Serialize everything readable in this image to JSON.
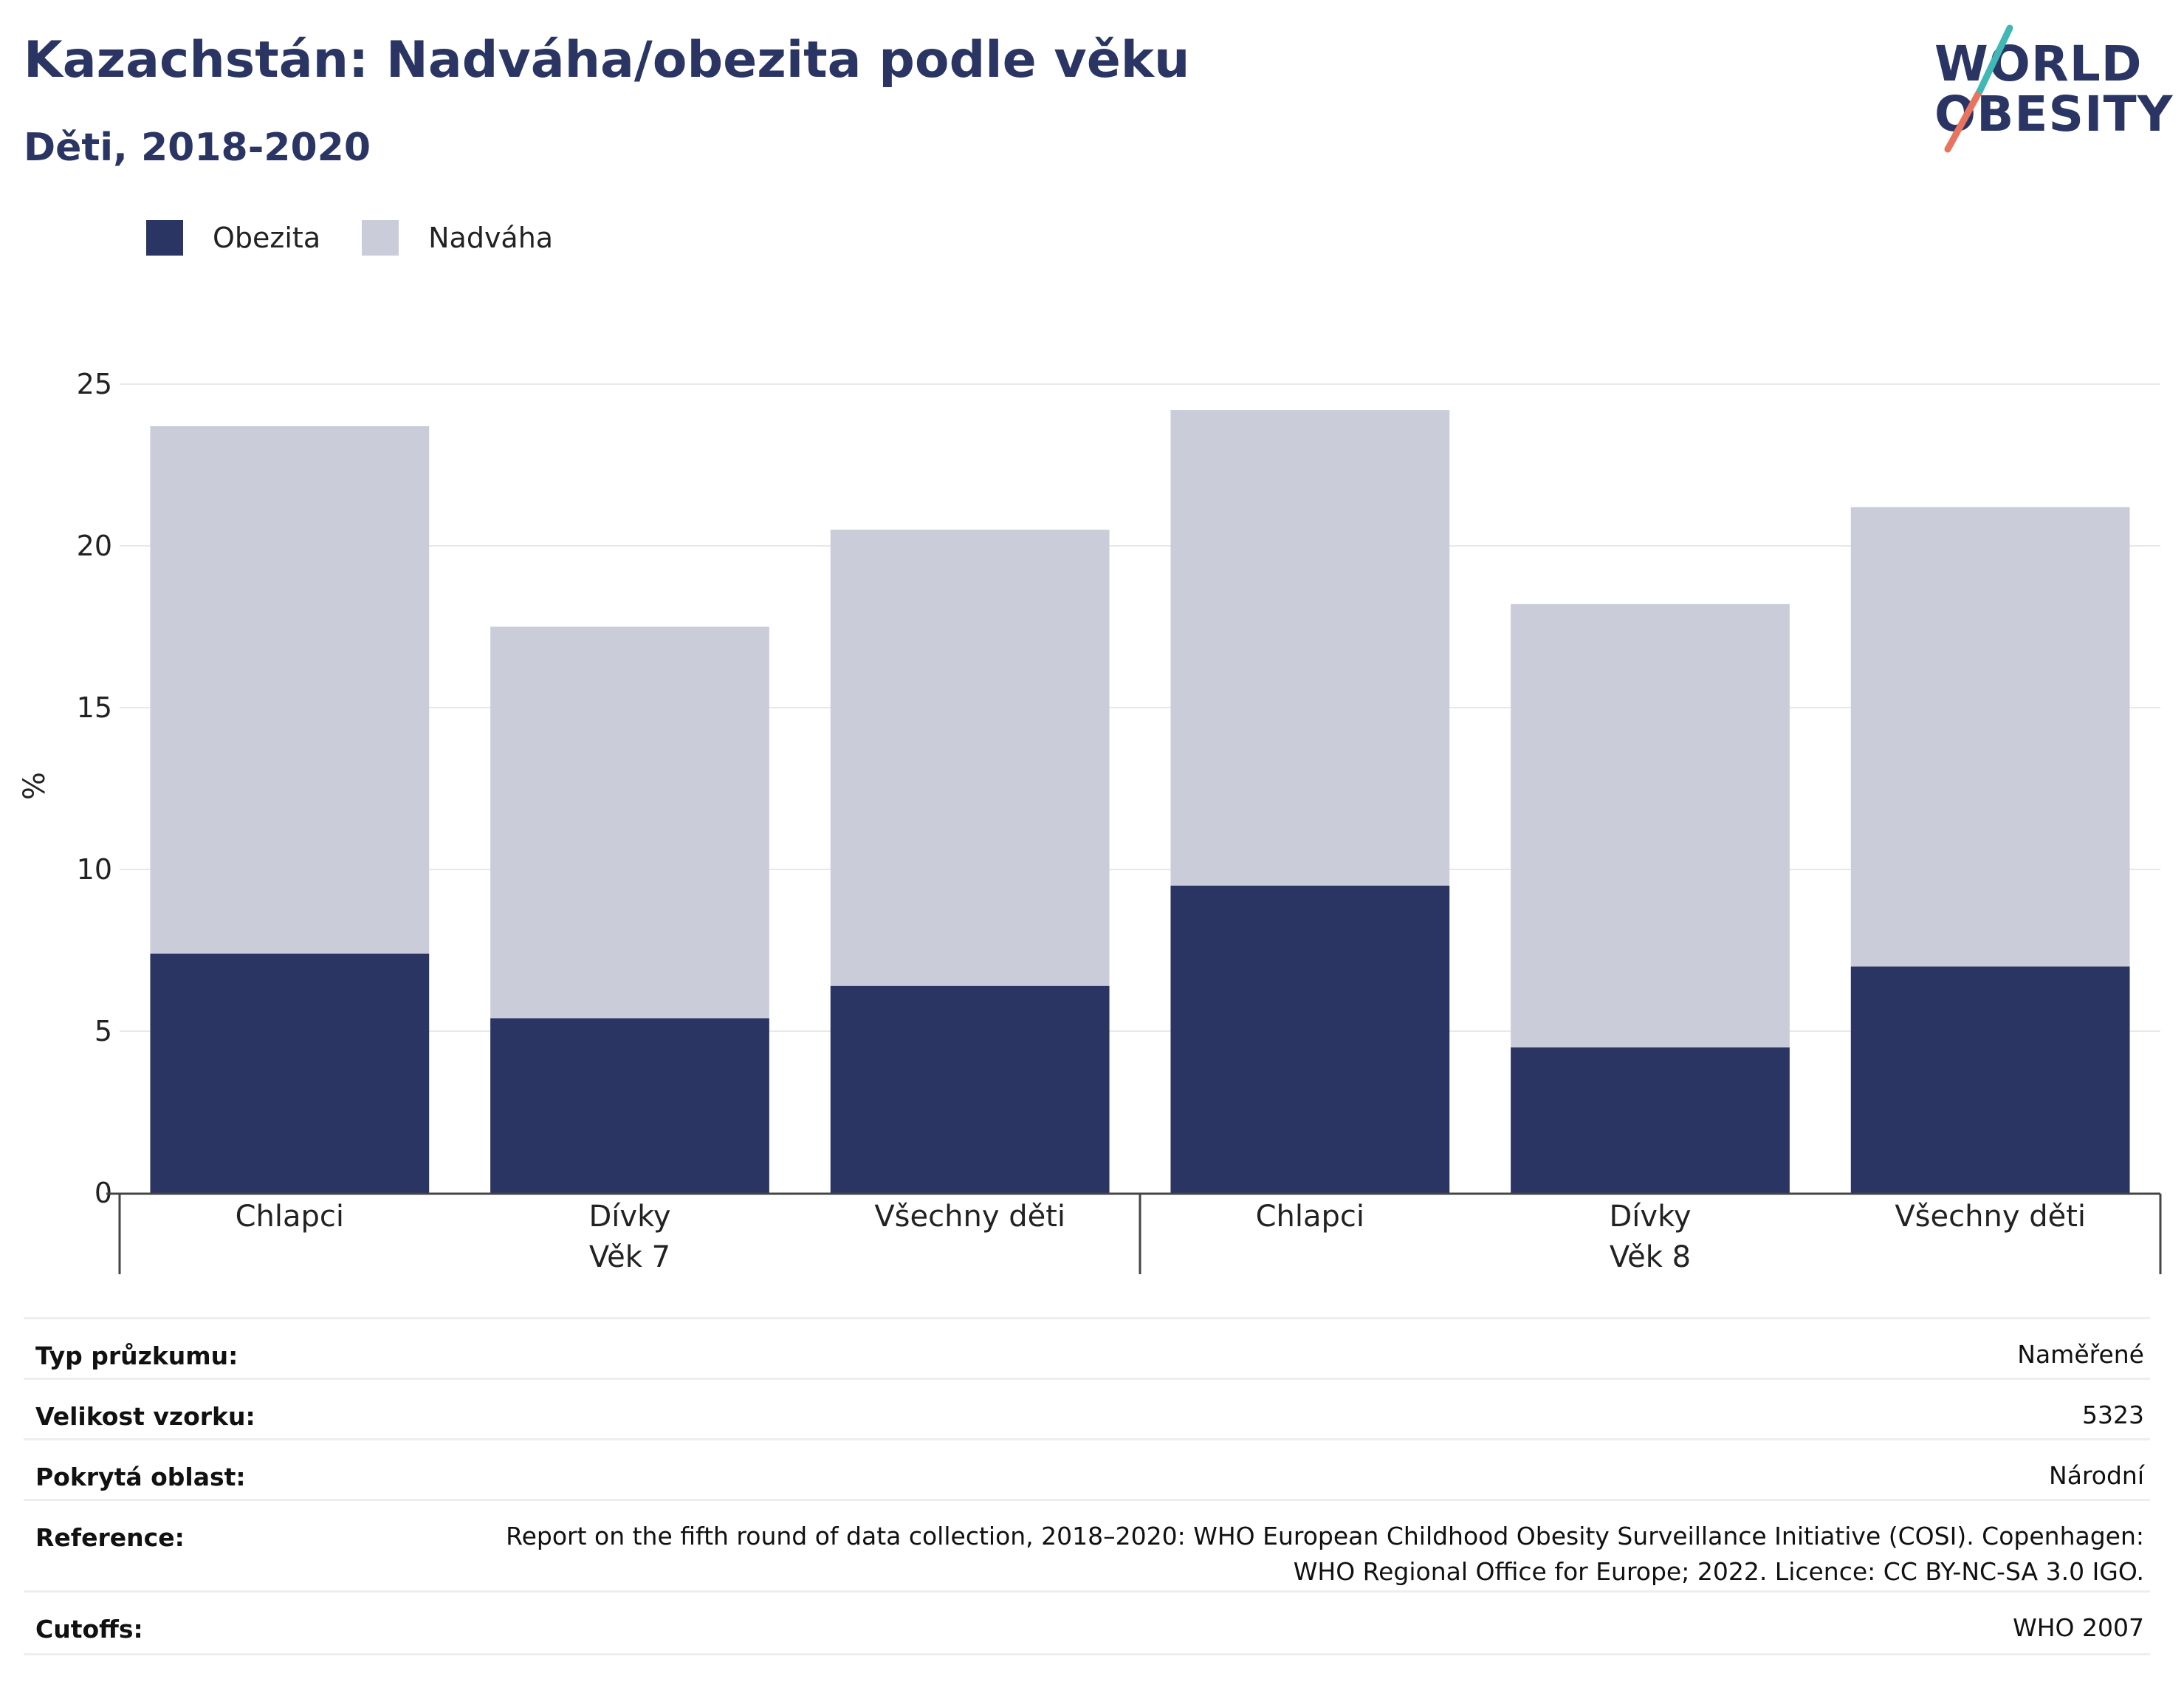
{
  "header": {
    "title": "Kazachstán: Nadváha/obezita podle věku",
    "subtitle": "Děti, 2018-2020"
  },
  "logo": {
    "line1": "WORLD",
    "line2": "OBESITY"
  },
  "legend": [
    {
      "label": "Obezita",
      "color": "#2a3563"
    },
    {
      "label": "Nadváha",
      "color": "#cacdd9"
    }
  ],
  "chart_data": {
    "type": "bar",
    "stacked": true,
    "categories": [
      "Chlapci",
      "Dívky",
      "Všechny děti",
      "Chlapci",
      "Dívky",
      "Všechny děti"
    ],
    "groups": [
      {
        "label": "Věk 7",
        "categories": [
          "Chlapci",
          "Dívky",
          "Všechny děti"
        ]
      },
      {
        "label": "Věk 8",
        "categories": [
          "Chlapci",
          "Dívky",
          "Všechny děti"
        ]
      }
    ],
    "series": [
      {
        "name": "Obezita",
        "color": "#2a3563",
        "values": [
          7.4,
          5.4,
          6.4,
          9.5,
          4.5,
          7.0
        ]
      },
      {
        "name": "Nadváha",
        "color": "#cacdd9",
        "values": [
          16.3,
          12.1,
          14.1,
          14.7,
          13.7,
          14.2
        ]
      }
    ],
    "ylabel": "%",
    "ylim": [
      0,
      25
    ],
    "yticks": [
      0,
      5,
      10,
      15,
      20,
      25
    ],
    "grid": true,
    "legend_position": "top-left"
  },
  "meta": [
    {
      "label": "Typ průzkumu:",
      "value": "Naměřené"
    },
    {
      "label": "Velikost vzorku:",
      "value": "5323"
    },
    {
      "label": "Pokrytá oblast:",
      "value": "Národní"
    },
    {
      "label": "Reference:",
      "value": "Report on the fifth round of data collection, 2018–2020: WHO European Childhood Obesity Surveillance Initiative (COSI). Copenhagen: WHO Regional Office for Europe; 2022. Licence: CC BY-NC-SA 3.0 IGO."
    },
    {
      "label": "Cutoffs:",
      "value": "WHO 2007"
    }
  ]
}
